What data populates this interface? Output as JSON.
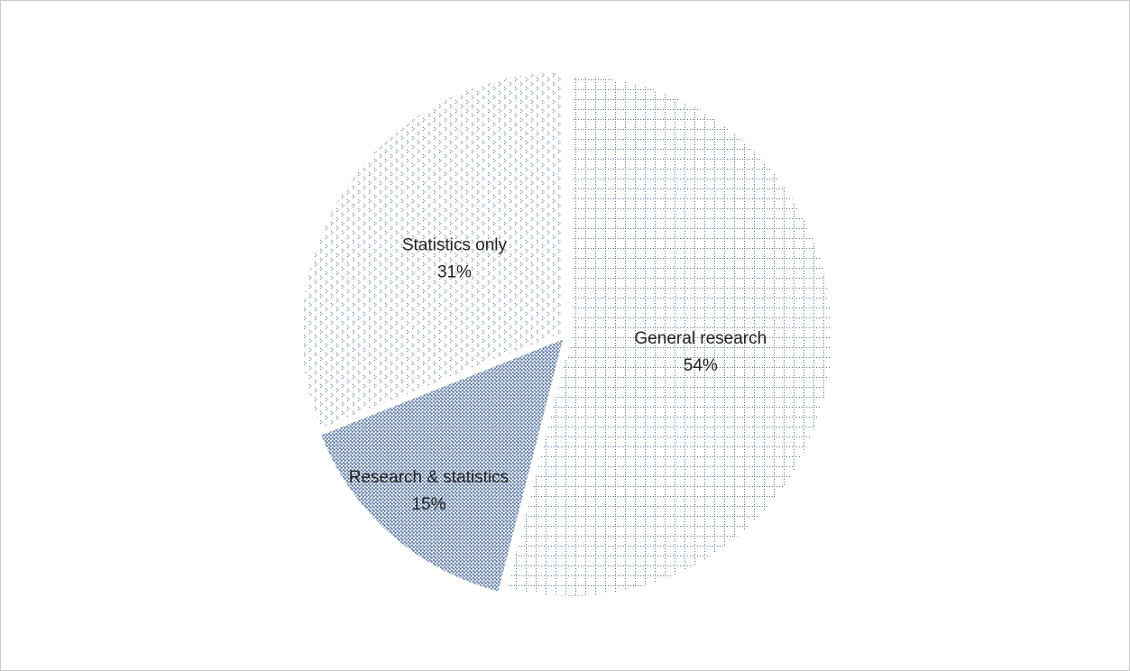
{
  "chart_data": {
    "type": "pie",
    "categories": [
      "General research",
      "Research & statistics",
      "Statistics only"
    ],
    "values": [
      54,
      15,
      31
    ],
    "value_labels": [
      "54%",
      "15%",
      "31%"
    ],
    "colors": [
      "#4f6f9c",
      "#4f6f9c",
      "#4f6f9c"
    ]
  }
}
